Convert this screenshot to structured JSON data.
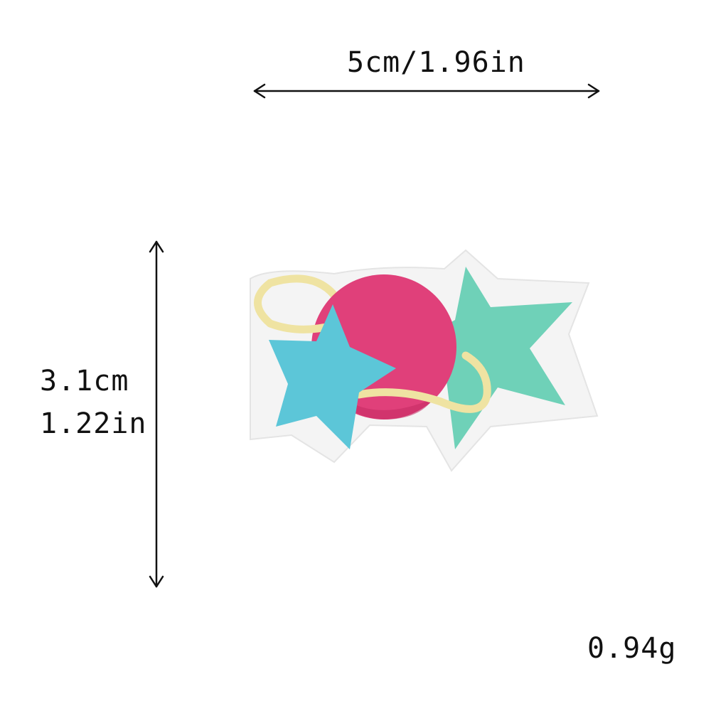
{
  "dimensions": {
    "width_label": "5cm/1.96in",
    "height_cm": "3.1cm",
    "height_in": "1.22in",
    "weight": "0.94g"
  },
  "patch": {
    "motif": "planet with ring and two stars",
    "colors": {
      "felt_border": "#f4f4f4",
      "planet": "#e0407a",
      "planet_shadow": "#c42a62",
      "star_left": "#5cc6d8",
      "star_right": "#6fd1b8",
      "ring": "#efe3a2"
    }
  },
  "icons": {
    "width_arrow": "double-headed-horizontal-arrow",
    "height_arrow": "double-headed-vertical-arrow"
  }
}
